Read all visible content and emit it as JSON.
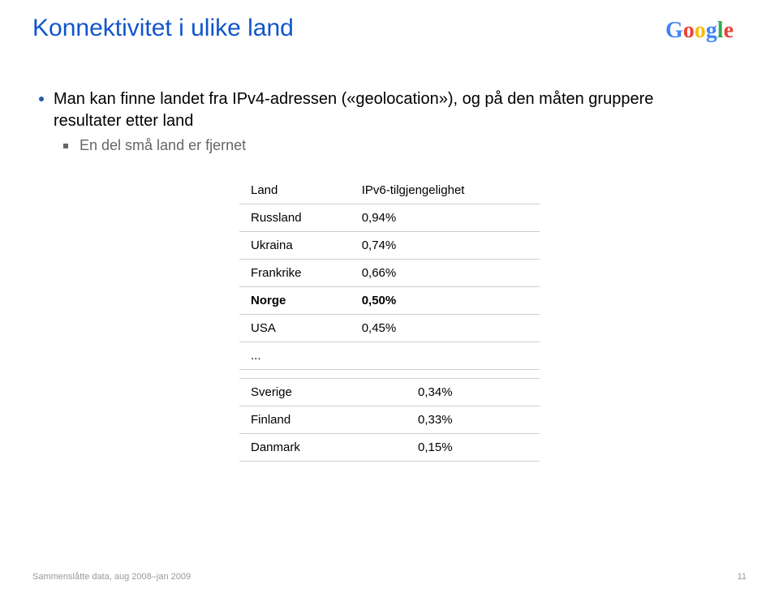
{
  "title": "Konnektivitet i ulike land",
  "bullets": {
    "l1": "Man kan finne landet fra IPv4-adressen («geolocation»), og på den måten gruppere resultater etter land",
    "l2": "En del små land er fjernet"
  },
  "table": {
    "columns": [
      "Land",
      "IPv6-tilgjengelighet"
    ],
    "rows_top": [
      {
        "country": "Russland",
        "value": "0,94%"
      },
      {
        "country": "Ukraina",
        "value": "0,74%"
      },
      {
        "country": "Frankrike",
        "value": "0,66%"
      },
      {
        "country": "Norge",
        "value": "0,50%",
        "highlight": true
      },
      {
        "country": "USA",
        "value": "0,45%"
      },
      {
        "country": "...",
        "value": ""
      }
    ],
    "rows_bottom": [
      {
        "country": "Sverige",
        "value": "0,34%"
      },
      {
        "country": "Finland",
        "value": "0,33%"
      },
      {
        "country": "Danmark",
        "value": "0,15%"
      }
    ],
    "highlight_color": "#009900",
    "border_color": "#cccccc",
    "font_size": 15
  },
  "footer": "Sammenslåtte data, aug 2008–jan 2009",
  "page_number": "11",
  "logo": {
    "colors": {
      "blue": "#4285f4",
      "red": "#ea4335",
      "yellow": "#fbbc05",
      "green": "#34a853"
    }
  },
  "colors": {
    "title": "#1155cc",
    "body_text": "#000000",
    "sub_text": "#666666",
    "footer_text": "#999999",
    "background": "#ffffff"
  }
}
